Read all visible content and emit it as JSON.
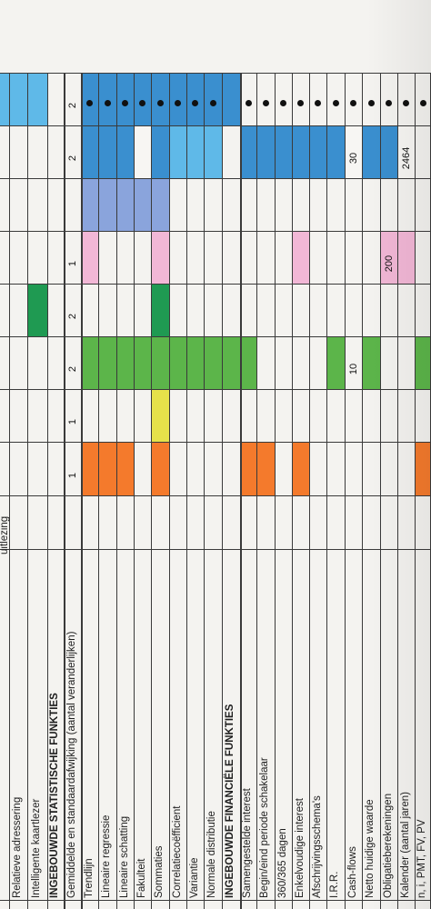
{
  "colors": {
    "blue": "#3a8fcf",
    "lightblue": "#5fb9e8",
    "periwinkle": "#8aa4dc",
    "pink": "#f2b7d6",
    "green": "#5cb54a",
    "darkgreen": "#1f9a52",
    "yellow": "#e6e24a",
    "orange": "#f47a2c"
  },
  "rows": [
    {
      "label": "uitlezing",
      "bold": false
    },
    {
      "label": "Relatieve adressering",
      "bold": false
    },
    {
      "label": "Intelligente kaartlezer",
      "bold": false
    },
    {
      "label": "INGEBOUWDE STATISTISCHE FUNKTIES",
      "bold": true
    },
    {
      "label": "Gemiddelde en standaardafwijking (aantal veranderlijken)",
      "bold": false
    },
    {
      "label": "Trendlijn",
      "bold": false
    },
    {
      "label": "Lineaire regressie",
      "bold": false
    },
    {
      "label": "Lineaire schatting",
      "bold": false
    },
    {
      "label": "Fakulteit",
      "bold": false
    },
    {
      "label": "Sommaties",
      "bold": false
    },
    {
      "label": "Correlatiecoëfficient",
      "bold": false
    },
    {
      "label": "Variantie",
      "bold": false
    },
    {
      "label": "Normale distributie",
      "bold": false
    },
    {
      "label": "INGEBOUWDE FINANCIËLE FUNKTIES",
      "bold": true
    },
    {
      "label": "Samengestelde interest",
      "bold": false
    },
    {
      "label": "Begin/eind periode schakelaar",
      "bold": false
    },
    {
      "label": "360/365 dagen",
      "bold": false
    },
    {
      "label": "Enkelvoudige interest",
      "bold": false
    },
    {
      "label": "Afschrijvingsschema's",
      "bold": false
    },
    {
      "label": "I.R.R.",
      "bold": false
    },
    {
      "label": "Cash-flows",
      "bold": false
    },
    {
      "label": "Netto huidige waarde",
      "bold": false
    },
    {
      "label": "Obligatieberekeningen",
      "bold": false
    },
    {
      "label": "Kalender (aantal jaren)",
      "bold": false
    },
    {
      "label": "n, i, PMT, FV, PV",
      "bold": false
    }
  ],
  "values": [
    {
      "row": 4,
      "col": 0,
      "text": "1"
    },
    {
      "row": 4,
      "col": 1,
      "text": "1"
    },
    {
      "row": 4,
      "col": 2,
      "text": "2"
    },
    {
      "row": 4,
      "col": 3,
      "text": "2"
    },
    {
      "row": 4,
      "col": 4,
      "text": "1"
    },
    {
      "row": 4,
      "col": 6,
      "text": "2"
    },
    {
      "row": 4,
      "col": 7,
      "text": "2"
    },
    {
      "row": 20,
      "col": 2,
      "text": "10"
    },
    {
      "row": 20,
      "col": 6,
      "text": "30"
    },
    {
      "row": 22,
      "col": 4,
      "text": "200"
    },
    {
      "row": 23,
      "col": 6,
      "text": "2464"
    }
  ]
}
